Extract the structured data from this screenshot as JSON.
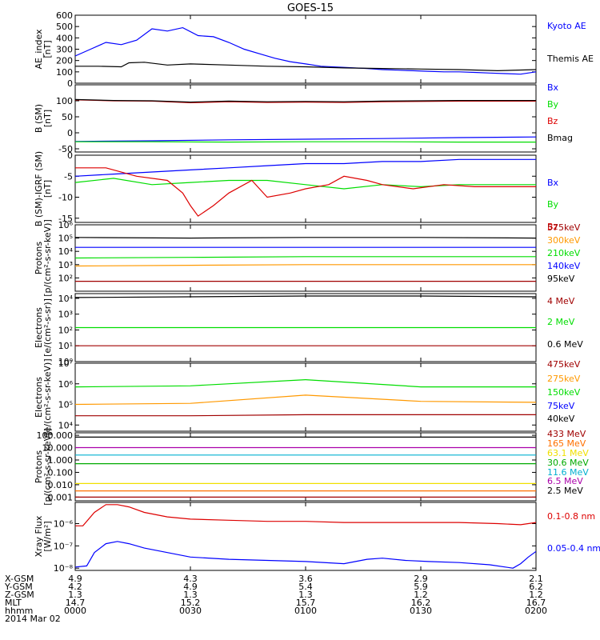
{
  "title": "GOES-15",
  "colors": {
    "black": "#000000",
    "blue": "#0000ff",
    "green": "#00dd00",
    "red": "#dd0000",
    "darkred": "#a00000",
    "orange": "#ff9900",
    "cyan": "#00b0d0",
    "yellow": "#f0e000",
    "purple": "#aa00aa",
    "darkgreen": "#00aa00",
    "dorange": "#ff7000"
  },
  "time_axis": {
    "ticks": [
      "0000",
      "0030",
      "0100",
      "0130",
      "0200"
    ],
    "date": "2014 Mar 02",
    "rows": [
      {
        "label": "X-GSM",
        "values": [
          "4.9",
          "4.3",
          "3.6",
          "2.9",
          "2.1"
        ]
      },
      {
        "label": "Y-GSM",
        "values": [
          "4.2",
          "4.9",
          "5.4",
          "5.9",
          "6.2"
        ]
      },
      {
        "label": "Z-GSM",
        "values": [
          "1.3",
          "1.3",
          "1.3",
          "1.2",
          "1.2"
        ]
      },
      {
        "label": "MLT",
        "values": [
          "14.7",
          "15.2",
          "15.7",
          "16.2",
          "16.7"
        ]
      },
      {
        "label": "hhmm",
        "values": [
          "0000",
          "0030",
          "0100",
          "0130",
          "0200"
        ]
      }
    ]
  },
  "chart_data": [
    {
      "type": "line",
      "ylabel": [
        "AE_index",
        "[nT]"
      ],
      "ylim": [
        0,
        600
      ],
      "yticks": [
        "0",
        "100",
        "200",
        "300",
        "400",
        "500",
        "600"
      ],
      "scale": "linear",
      "series": [
        {
          "name": "Kyoto AE",
          "color": "blue",
          "t": [
            0,
            4,
            8,
            12,
            16,
            20,
            24,
            28,
            32,
            36,
            40,
            44,
            48,
            52,
            56,
            60,
            64,
            70,
            76,
            80,
            84,
            88,
            92,
            96,
            100,
            104,
            108,
            112,
            116,
            120
          ],
          "values": [
            240,
            300,
            360,
            340,
            380,
            480,
            460,
            490,
            420,
            410,
            360,
            300,
            260,
            220,
            190,
            170,
            150,
            140,
            130,
            120,
            115,
            110,
            105,
            100,
            100,
            95,
            90,
            85,
            80,
            100
          ]
        },
        {
          "name": "Themis AE",
          "color": "black",
          "t": [
            0,
            6,
            12,
            14,
            18,
            24,
            30,
            40,
            50,
            60,
            70,
            80,
            90,
            100,
            110,
            120
          ],
          "values": [
            150,
            150,
            145,
            180,
            185,
            160,
            170,
            160,
            150,
            145,
            135,
            130,
            125,
            120,
            110,
            120
          ]
        }
      ]
    },
    {
      "type": "line",
      "ylabel": [
        "B (SM)",
        "[nT]"
      ],
      "ylim": [
        -60,
        150
      ],
      "yticks": [
        "-50",
        "0",
        "50",
        "100"
      ],
      "scale": "linear",
      "series": [
        {
          "name": "Bx",
          "color": "blue",
          "t": [
            0,
            20,
            40,
            60,
            80,
            100,
            120
          ],
          "values": [
            -27,
            -25,
            -22,
            -20,
            -18,
            -15,
            -13
          ]
        },
        {
          "name": "By",
          "color": "green",
          "t": [
            0,
            20,
            40,
            60,
            80,
            100,
            120
          ],
          "values": [
            -28,
            -28,
            -29,
            -28,
            -28,
            -29,
            -29
          ]
        },
        {
          "name": "Bz",
          "color": "red",
          "t": [
            0,
            10,
            20,
            30,
            40,
            50,
            60,
            70,
            80,
            90,
            100,
            110,
            120
          ],
          "values": [
            103,
            100,
            99,
            94,
            97,
            95,
            96,
            95,
            97,
            98,
            99,
            99,
            99
          ]
        },
        {
          "name": "Bmag",
          "color": "black",
          "t": [
            0,
            10,
            20,
            30,
            40,
            50,
            60,
            70,
            80,
            90,
            100,
            110,
            120
          ],
          "values": [
            104,
            101,
            100,
            96,
            99,
            97,
            98,
            97,
            99,
            100,
            101,
            101,
            101
          ]
        }
      ]
    },
    {
      "type": "line",
      "ylabel": [
        "B (SM)-IGRF (SM)",
        "[nT]"
      ],
      "ylim": [
        -16,
        0
      ],
      "yticks": [
        "-15",
        "-10",
        "-5",
        "0"
      ],
      "scale": "linear",
      "series": [
        {
          "name": "Bx",
          "color": "blue",
          "t": [
            0,
            10,
            20,
            30,
            40,
            50,
            60,
            70,
            80,
            90,
            100,
            110,
            120
          ],
          "values": [
            -5,
            -4.5,
            -4,
            -3.5,
            -3,
            -2.5,
            -2,
            -2,
            -1.5,
            -1.5,
            -1,
            -1,
            -1
          ]
        },
        {
          "name": "By",
          "color": "green",
          "t": [
            0,
            10,
            20,
            30,
            40,
            50,
            60,
            70,
            80,
            90,
            100,
            110,
            120
          ],
          "values": [
            -6.5,
            -5.5,
            -7,
            -6.5,
            -6,
            -6,
            -7,
            -8,
            -7,
            -7.5,
            -7,
            -7,
            -7
          ]
        },
        {
          "name": "Bz",
          "color": "red",
          "t": [
            0,
            8,
            16,
            24,
            28,
            30,
            32,
            36,
            40,
            46,
            50,
            56,
            60,
            66,
            70,
            76,
            80,
            88,
            96,
            104,
            112,
            120
          ],
          "values": [
            -3,
            -3,
            -5,
            -6,
            -9,
            -12,
            -14.5,
            -12,
            -9,
            -6,
            -10,
            -9,
            -8,
            -7,
            -5,
            -6,
            -7,
            -8,
            -7,
            -7.5,
            -7.5,
            -7.5
          ]
        }
      ]
    },
    {
      "type": "line",
      "ylabel": [
        "Protons",
        "[p/(cm²-s-sr-keV)]"
      ],
      "ylim": [
        1,
        6
      ],
      "yticks": [
        "10²",
        "10³",
        "10⁴",
        "10⁵",
        "10⁶"
      ],
      "ytick_values": [
        2,
        3,
        4,
        5,
        6
      ],
      "scale": "log",
      "series": [
        {
          "name": "575keV",
          "color": "darkred",
          "t": [
            0,
            30,
            60,
            90,
            120
          ],
          "values": [
            1.75,
            1.75,
            1.75,
            1.75,
            1.75
          ]
        },
        {
          "name": "300keV",
          "color": "orange",
          "t": [
            0,
            30,
            60,
            90,
            120
          ],
          "values": [
            2.9,
            2.95,
            3.0,
            3.0,
            3.0
          ]
        },
        {
          "name": "210keV",
          "color": "green",
          "t": [
            0,
            30,
            60,
            90,
            120
          ],
          "values": [
            3.5,
            3.55,
            3.6,
            3.6,
            3.6
          ]
        },
        {
          "name": "140keV",
          "color": "blue",
          "t": [
            0,
            30,
            60,
            90,
            120
          ],
          "values": [
            4.3,
            4.3,
            4.3,
            4.3,
            4.3
          ]
        },
        {
          "name": "95keV",
          "color": "black",
          "t": [
            0,
            30,
            60,
            90,
            120
          ],
          "values": [
            5.05,
            5.0,
            5.05,
            5.05,
            5.0
          ]
        }
      ]
    },
    {
      "type": "line",
      "ylabel": [
        "Electrons",
        "[e/(cm²-s-sr)]"
      ],
      "ylim": [
        0,
        4.3
      ],
      "yticks": [
        "10⁰",
        "10¹",
        "10²",
        "10³",
        "10⁴"
      ],
      "ytick_values": [
        0,
        1,
        2,
        3,
        4
      ],
      "scale": "log",
      "series": [
        {
          "name": "4 MeV",
          "color": "darkred",
          "t": [
            0,
            30,
            60,
            90,
            120
          ],
          "values": [
            1.0,
            1.0,
            1.0,
            1.0,
            1.0
          ]
        },
        {
          "name": "2 MeV",
          "color": "green",
          "t": [
            0,
            30,
            60,
            90,
            120
          ],
          "values": [
            2.15,
            2.15,
            2.15,
            2.15,
            2.15
          ]
        },
        {
          "name": "0.6 MeV",
          "color": "black",
          "t": [
            0,
            30,
            60,
            90,
            120
          ],
          "values": [
            4.05,
            4.1,
            4.15,
            4.15,
            4.1
          ]
        }
      ]
    },
    {
      "type": "line",
      "ylabel": [
        "Electrons",
        "[e/(cm²-s-sr-keV)]"
      ],
      "ylim": [
        3.7,
        7
      ],
      "yticks": [
        "10⁴",
        "10⁵",
        "10⁶",
        "10⁷"
      ],
      "ytick_values": [
        4,
        5,
        6,
        7
      ],
      "scale": "log",
      "series": [
        {
          "name": "475keV",
          "color": "darkred",
          "t": [
            0,
            30,
            60,
            90,
            120
          ],
          "values": [
            4.45,
            4.45,
            4.5,
            4.5,
            4.5
          ]
        },
        {
          "name": "275keV",
          "color": "orange",
          "t": [
            0,
            30,
            60,
            90,
            120
          ],
          "values": [
            5.0,
            5.05,
            5.45,
            5.15,
            5.1
          ]
        },
        {
          "name": "150keV",
          "color": "green",
          "t": [
            0,
            30,
            60,
            90,
            120
          ],
          "values": [
            5.85,
            5.9,
            6.2,
            5.85,
            5.85
          ]
        },
        {
          "name": "75keV",
          "color": "blue",
          "t": [],
          "values": []
        },
        {
          "name": "40keV",
          "color": "black",
          "t": [],
          "values": []
        }
      ]
    },
    {
      "type": "line",
      "ylabel": [
        "Protons",
        "[p/(cm²-s-sr-keV)]"
      ],
      "ylim": [
        -3.3,
        2.2
      ],
      "yticks": [
        "0.001",
        "0.010",
        "0.100",
        "1.000",
        "10.000",
        "100.000",
        "1000.000"
      ],
      "ytick_values": [
        -3,
        -2,
        -1,
        0,
        1,
        2,
        3
      ],
      "scale": "log",
      "series": [
        {
          "name": "433 MeV",
          "color": "darkred",
          "t": [
            0,
            30,
            60,
            90,
            120
          ],
          "values": [
            -3.0,
            -3.0,
            -3.0,
            -3.0,
            -3.0
          ]
        },
        {
          "name": "165 MeV",
          "color": "dorange",
          "t": [
            0,
            30,
            60,
            90,
            120
          ],
          "values": [
            -2.5,
            -2.5,
            -2.5,
            -2.5,
            -2.5
          ]
        },
        {
          "name": "63.1 MeV",
          "color": "yellow",
          "t": [
            0,
            30,
            60,
            90,
            120
          ],
          "values": [
            -1.9,
            -1.9,
            -1.9,
            -1.9,
            -1.9
          ]
        },
        {
          "name": "30.6 MeV",
          "color": "darkgreen",
          "t": [
            0,
            30,
            60,
            90,
            120
          ],
          "values": [
            -0.3,
            -0.3,
            -0.3,
            -0.3,
            -0.3
          ]
        },
        {
          "name": "11.6 MeV",
          "color": "cyan",
          "t": [
            0,
            30,
            60,
            90,
            120
          ],
          "values": [
            0.4,
            0.4,
            0.4,
            0.4,
            0.4
          ]
        },
        {
          "name": "6.5 MeV",
          "color": "purple",
          "t": [
            0,
            30,
            60,
            90,
            120
          ],
          "values": [
            1.0,
            1.0,
            1.0,
            1.0,
            1.0
          ]
        },
        {
          "name": "2.5 MeV",
          "color": "black",
          "t": [
            0,
            30,
            60,
            90,
            120
          ],
          "values": [
            1.85,
            1.85,
            1.85,
            1.85,
            1.85
          ]
        }
      ]
    },
    {
      "type": "line",
      "ylabel": [
        "Xray Flux",
        "[W/m²]"
      ],
      "ylim": [
        -8.1,
        -5.05
      ],
      "yticks": [
        "10⁻⁸",
        "10⁻⁷",
        "10⁻⁶",
        "10⁻⁵"
      ],
      "ytick_values": [
        -8,
        -7,
        -6,
        -5
      ],
      "scale": "log",
      "series": [
        {
          "name": "0.1-0.8 nm",
          "color": "red",
          "t": [
            0,
            2,
            5,
            8,
            11,
            14,
            18,
            24,
            30,
            40,
            50,
            60,
            70,
            80,
            90,
            100,
            110,
            116,
            120
          ],
          "values": [
            -6.1,
            -6.1,
            -5.5,
            -5.15,
            -5.15,
            -5.25,
            -5.5,
            -5.7,
            -5.8,
            -5.85,
            -5.9,
            -5.9,
            -5.95,
            -5.95,
            -5.95,
            -5.95,
            -6.0,
            -6.05,
            -5.95
          ]
        },
        {
          "name": "0.05-0.4 nm",
          "color": "blue",
          "t": [
            0,
            3,
            5,
            8,
            11,
            14,
            18,
            24,
            30,
            40,
            50,
            60,
            70,
            76,
            80,
            86,
            92,
            100,
            108,
            112,
            114,
            116,
            118,
            120
          ],
          "values": [
            -7.95,
            -7.9,
            -7.3,
            -6.9,
            -6.8,
            -6.9,
            -7.1,
            -7.3,
            -7.5,
            -7.6,
            -7.65,
            -7.7,
            -7.8,
            -7.6,
            -7.55,
            -7.65,
            -7.7,
            -7.75,
            -7.85,
            -7.95,
            -8.0,
            -7.8,
            -7.5,
            -7.25
          ]
        }
      ]
    }
  ]
}
